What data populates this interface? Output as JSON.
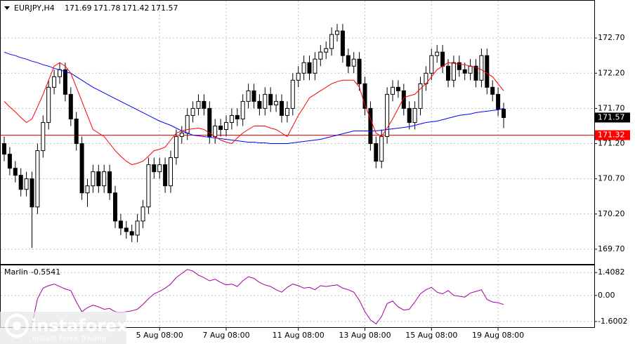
{
  "chart_data": {
    "type": "candlestick",
    "title": "EURJPY,H4",
    "categories": [
      null,
      null,
      null,
      null,
      null,
      null,
      null,
      null,
      null,
      null,
      null,
      null,
      null,
      null,
      null,
      null,
      null,
      null,
      null,
      null,
      null,
      null,
      null,
      null,
      null,
      null,
      null,
      null,
      "5 Aug 08:00",
      null,
      null,
      null,
      null,
      null,
      null,
      null,
      null,
      null,
      null,
      null,
      "7 Aug 08:00",
      null,
      null,
      null,
      null,
      null,
      null,
      null,
      null,
      null,
      null,
      null,
      null,
      "11 Aug 08:00",
      null,
      null,
      null,
      null,
      null,
      null,
      null,
      null,
      null,
      null,
      null,
      "13 Aug 08:00",
      null,
      null,
      null,
      null,
      null,
      null,
      null,
      null,
      null,
      null,
      null,
      "15 Aug 08:00",
      null,
      null,
      null,
      null,
      null,
      null,
      null,
      null,
      null,
      null,
      null,
      "19 Aug 08:00",
      null
    ],
    "open": [
      171.2,
      171.05,
      170.85,
      170.75,
      170.55,
      170.7,
      170.3,
      171.1,
      171.5,
      172.0,
      172.15,
      172.25,
      171.9,
      171.55,
      171.2,
      170.5,
      170.6,
      170.8,
      170.6,
      170.8,
      170.5,
      170.1,
      170.0,
      169.95,
      169.9,
      170.1,
      170.3,
      170.9,
      170.8,
      170.9,
      170.6,
      171.0,
      171.3,
      171.35,
      171.6,
      171.7,
      171.8,
      171.7,
      171.3,
      171.45,
      171.4,
      171.5,
      171.6,
      171.55,
      171.8,
      171.95,
      171.8,
      171.7,
      171.9,
      171.75,
      171.8,
      171.6,
      171.7,
      172.1,
      172.2,
      172.35,
      172.2,
      172.4,
      172.5,
      172.55,
      172.75,
      172.8,
      172.45,
      172.3,
      172.4,
      172.05,
      171.7,
      171.2,
      170.95,
      171.3,
      171.9,
      172.0,
      171.95,
      171.7,
      171.5,
      171.7,
      172.05,
      172.2,
      172.45,
      172.5,
      172.3,
      172.1,
      172.35,
      172.25,
      172.2,
      172.3,
      172.1,
      172.45,
      172.0,
      171.9,
      171.69
    ],
    "high": [
      171.3,
      171.15,
      170.95,
      170.85,
      170.8,
      170.8,
      171.2,
      171.6,
      172.1,
      172.25,
      172.35,
      172.35,
      172.0,
      171.65,
      171.3,
      170.7,
      170.9,
      170.9,
      170.9,
      170.9,
      170.6,
      170.2,
      170.1,
      170.05,
      170.2,
      170.4,
      171.0,
      171.0,
      171.0,
      171.0,
      171.1,
      171.4,
      171.45,
      171.7,
      171.8,
      171.9,
      171.9,
      171.8,
      171.55,
      171.55,
      171.6,
      171.7,
      171.7,
      171.9,
      172.05,
      172.05,
      171.9,
      172.0,
      172.0,
      171.9,
      171.9,
      171.8,
      172.2,
      172.3,
      172.45,
      172.45,
      172.5,
      172.6,
      172.65,
      172.85,
      172.9,
      172.9,
      172.55,
      172.5,
      172.5,
      172.15,
      171.8,
      171.3,
      171.4,
      172.0,
      172.1,
      172.1,
      172.05,
      171.8,
      171.8,
      172.15,
      172.3,
      172.55,
      172.6,
      172.6,
      172.4,
      172.45,
      172.45,
      172.35,
      172.4,
      172.4,
      172.55,
      172.55,
      172.1,
      172.0,
      171.78
    ],
    "low": [
      170.95,
      170.75,
      170.65,
      170.45,
      170.45,
      169.72,
      170.2,
      171.0,
      171.4,
      171.9,
      172.05,
      171.8,
      171.45,
      171.1,
      170.4,
      170.3,
      170.5,
      170.5,
      170.5,
      170.4,
      170.0,
      169.9,
      169.85,
      169.8,
      169.8,
      170.0,
      170.2,
      170.7,
      170.7,
      170.5,
      170.5,
      170.9,
      171.2,
      171.25,
      171.5,
      171.6,
      171.6,
      171.2,
      171.2,
      171.3,
      171.3,
      171.4,
      171.45,
      171.45,
      171.7,
      171.7,
      171.6,
      171.6,
      171.65,
      171.65,
      171.5,
      171.5,
      171.6,
      172.0,
      172.1,
      172.1,
      172.1,
      172.3,
      172.4,
      172.45,
      172.65,
      172.35,
      172.2,
      172.2,
      171.95,
      171.6,
      171.1,
      170.85,
      170.85,
      171.2,
      171.8,
      171.85,
      171.6,
      171.4,
      171.4,
      171.6,
      171.95,
      172.1,
      172.35,
      172.2,
      172.0,
      172.0,
      172.15,
      172.1,
      172.1,
      172.0,
      172.0,
      171.9,
      171.8,
      171.59,
      171.42
    ],
    "close": [
      171.05,
      170.85,
      170.75,
      170.55,
      170.7,
      170.3,
      171.1,
      171.5,
      172.0,
      172.15,
      172.25,
      171.9,
      171.55,
      171.2,
      170.5,
      170.6,
      170.8,
      170.6,
      170.8,
      170.5,
      170.1,
      170.0,
      169.95,
      169.9,
      170.1,
      170.3,
      170.9,
      170.8,
      170.9,
      170.6,
      171.0,
      171.3,
      171.35,
      171.6,
      171.7,
      171.8,
      171.7,
      171.3,
      171.45,
      171.4,
      171.5,
      171.6,
      171.55,
      171.8,
      171.95,
      171.8,
      171.7,
      171.9,
      171.75,
      171.8,
      171.6,
      171.7,
      172.1,
      172.2,
      172.35,
      172.2,
      172.4,
      172.5,
      172.55,
      172.75,
      172.8,
      172.45,
      172.3,
      172.4,
      172.05,
      171.7,
      171.2,
      170.95,
      171.3,
      171.9,
      172.0,
      171.95,
      171.7,
      171.5,
      171.7,
      172.05,
      172.2,
      172.45,
      172.5,
      172.3,
      172.1,
      172.35,
      172.25,
      172.2,
      172.3,
      172.1,
      172.45,
      172.0,
      171.9,
      171.69,
      171.57
    ],
    "series": [
      {
        "color": "#0000ff",
        "values": [
          172.5,
          172.47,
          172.45,
          172.42,
          172.4,
          172.37,
          172.35,
          172.32,
          172.3,
          172.27,
          172.25,
          172.22,
          172.2,
          172.15,
          172.1,
          172.05,
          172.0,
          171.96,
          171.92,
          171.88,
          171.84,
          171.8,
          171.76,
          171.72,
          171.68,
          171.64,
          171.6,
          171.56,
          171.52,
          171.49,
          171.46,
          171.42,
          171.38,
          171.35,
          171.32,
          171.31,
          171.3,
          171.29,
          171.28,
          171.27,
          171.26,
          171.25,
          171.24,
          171.23,
          171.22,
          171.22,
          171.21,
          171.21,
          171.2,
          171.2,
          171.2,
          171.2,
          171.21,
          171.22,
          171.23,
          171.24,
          171.25,
          171.26,
          171.28,
          171.3,
          171.32,
          171.34,
          171.36,
          171.38,
          171.38,
          171.38,
          171.38,
          171.38,
          171.39,
          171.4,
          171.41,
          171.42,
          171.43,
          171.44,
          171.46,
          171.48,
          171.5,
          171.51,
          171.52,
          171.54,
          171.56,
          171.58,
          171.6,
          171.61,
          171.62,
          171.64,
          171.65,
          171.66,
          171.67,
          171.68,
          171.7
        ]
      },
      {
        "color": "#ff0000",
        "values": [
          171.8,
          171.72,
          171.65,
          171.57,
          171.5,
          171.55,
          171.72,
          171.9,
          172.1,
          172.3,
          172.35,
          172.3,
          172.2,
          172.0,
          171.8,
          171.6,
          171.4,
          171.35,
          171.3,
          171.2,
          171.1,
          171.02,
          170.95,
          170.9,
          170.92,
          170.95,
          171.02,
          171.1,
          171.12,
          171.15,
          171.25,
          171.35,
          171.38,
          171.4,
          171.41,
          171.42,
          171.4,
          171.35,
          171.3,
          171.25,
          171.22,
          171.2,
          171.28,
          171.35,
          171.4,
          171.45,
          171.45,
          171.45,
          171.42,
          171.4,
          171.35,
          171.3,
          171.45,
          171.6,
          171.72,
          171.85,
          171.9,
          171.95,
          172.0,
          172.05,
          172.08,
          172.1,
          172.1,
          172.1,
          172.0,
          171.75,
          171.55,
          171.35,
          171.3,
          171.42,
          171.55,
          171.7,
          171.85,
          171.88,
          171.9,
          171.98,
          172.05,
          172.15,
          172.25,
          172.3,
          172.35,
          172.34,
          172.33,
          172.32,
          172.3,
          172.28,
          172.25,
          172.2,
          172.15,
          172.05,
          171.95
        ]
      }
    ],
    "hline": {
      "value": 171.32,
      "color": "#ff0000"
    },
    "ylim": [
      169.5,
      173.22
    ],
    "yticks": [
      {
        "value": 172.7,
        "label": "172.70"
      },
      {
        "value": 172.2,
        "label": "172.20"
      },
      {
        "value": 171.7,
        "label": "171.70"
      },
      {
        "value": 171.2,
        "label": "171.20"
      },
      {
        "value": 170.7,
        "label": "170.70"
      },
      {
        "value": 170.2,
        "label": "170.20"
      },
      {
        "value": 169.7,
        "label": "169.70"
      }
    ],
    "grid": true,
    "indicator": {
      "name": "Marlin",
      "color": "#a000a0",
      "values": [
        null,
        null,
        null,
        null,
        null,
        -1.8,
        -0.2,
        0.45,
        0.6,
        0.7,
        0.55,
        0.4,
        0.3,
        -0.4,
        -1.0,
        -0.75,
        -0.6,
        -0.7,
        -0.85,
        -0.8,
        -1.0,
        -1.05,
        -1.0,
        -0.95,
        -0.85,
        -0.55,
        -0.2,
        0.1,
        0.25,
        0.45,
        0.7,
        1.1,
        1.35,
        1.6,
        1.5,
        1.25,
        1.1,
        0.9,
        1.0,
        0.8,
        0.65,
        0.7,
        0.55,
        0.9,
        1.15,
        1.05,
        0.8,
        0.65,
        0.55,
        0.35,
        0.2,
        0.5,
        0.7,
        0.6,
        0.45,
        0.5,
        0.35,
        0.6,
        0.55,
        0.6,
        0.65,
        0.45,
        0.35,
        0.2,
        -0.3,
        -1.0,
        -1.5,
        -1.75,
        -1.3,
        -0.5,
        -0.35,
        -0.7,
        -0.9,
        -0.85,
        -0.4,
        0.1,
        0.35,
        0.5,
        0.2,
        0.1,
        0.3,
        0.0,
        -0.05,
        -0.1,
        0.15,
        0.25,
        0.35,
        -0.25,
        -0.4,
        -0.45,
        -0.5541
      ],
      "ylim": [
        -1.95,
        1.85
      ],
      "yticks": [
        1.4082,
        {
          "value": 0,
          "label": "0.00"
        },
        -1.6002
      ]
    }
  },
  "watermark": {
    "brand": "instaforex",
    "tagline": "Instant Forex Trading"
  }
}
